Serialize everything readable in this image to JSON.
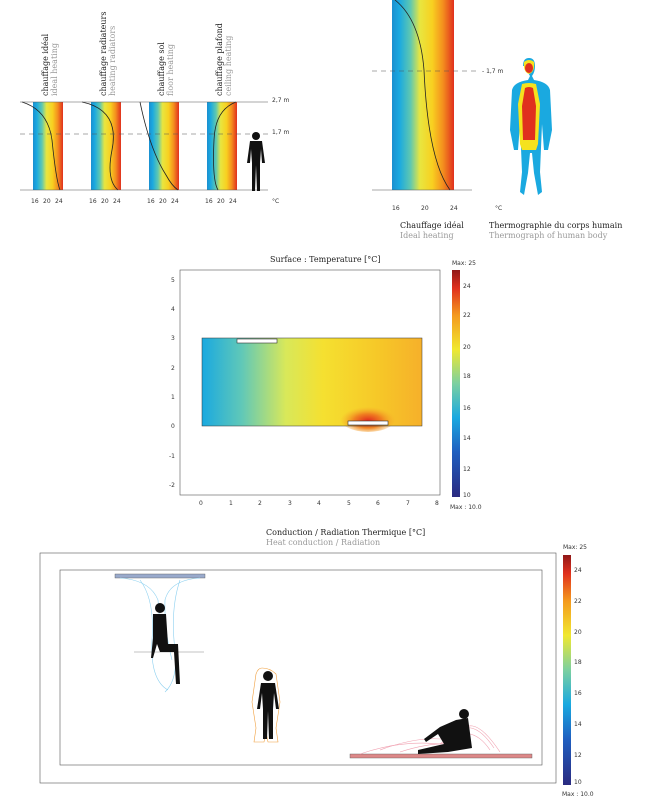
{
  "top_left": {
    "panels": [
      {
        "title": "chauffage idéal",
        "subtitle": "ideal heating"
      },
      {
        "title": "chauffage radiateurs",
        "subtitle": "heating radiators"
      },
      {
        "title": "chauffage sol",
        "subtitle": "floor heating"
      },
      {
        "title": "chauffage plafond",
        "subtitle": "ceiling heating"
      }
    ],
    "ticks": [
      "16",
      "20",
      "24"
    ],
    "height_top": "2,7 m",
    "height_mid": "1,7 m",
    "unit": "°C"
  },
  "top_right": {
    "height_label": "- 1,7 m",
    "ticks": [
      "16",
      "20",
      "24"
    ],
    "unit": "°C",
    "caption_left_title": "Chauffage idéal",
    "caption_left_sub": "Ideal heating",
    "caption_right_title": "Thermographie du corps humain",
    "caption_right_sub": "Thermograph of human body"
  },
  "surface_plot": {
    "title": "Surface : Temperature [°C]",
    "y_ticks": [
      "5",
      "4",
      "3",
      "2",
      "1",
      "0",
      "-1",
      "-2"
    ],
    "x_ticks": [
      "0",
      "1",
      "2",
      "3",
      "4",
      "5",
      "6",
      "7",
      "8"
    ],
    "colorbar_max": "Max: 25",
    "colorbar_min": "Max : 10.0",
    "colorbar_ticks": [
      "24",
      "22",
      "20",
      "18",
      "16",
      "14",
      "12",
      "10"
    ]
  },
  "conduction_plot": {
    "title": "Conduction / Radiation Thermique [°C]",
    "subtitle": "Heat conduction / Radiation",
    "colorbar_max": "Max: 25",
    "colorbar_min": "Max : 10.0",
    "colorbar_ticks": [
      "24",
      "22",
      "20",
      "18",
      "16",
      "14",
      "12",
      "10"
    ]
  },
  "colors": {
    "cold": "#1aa9e0",
    "cool": "#5cc8c0",
    "mid": "#f5e21e",
    "warm": "#f59a1e",
    "hot": "#e0301e"
  }
}
